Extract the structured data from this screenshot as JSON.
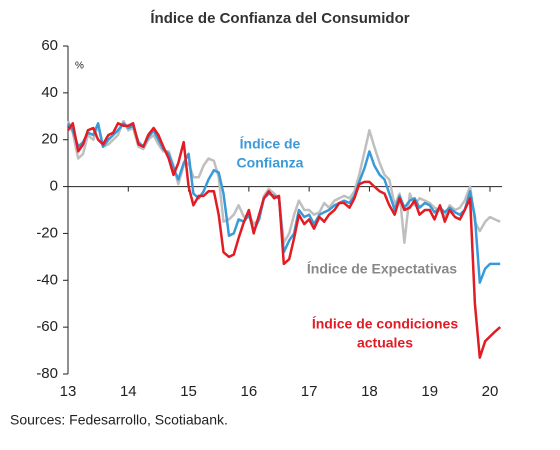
{
  "chart_data": {
    "type": "line",
    "title": "Índice de Confianza del Consumidor",
    "y_label": "%",
    "source": "Sources: Fedesarrollo, Scotiabank.",
    "xlim": [
      13,
      20.2
    ],
    "xticks": [
      13,
      14,
      15,
      16,
      17,
      18,
      19,
      20
    ],
    "ylim": [
      -80,
      60
    ],
    "yticks": [
      -80,
      -60,
      -40,
      -20,
      0,
      20,
      40,
      60
    ],
    "x": [
      13,
      13.08,
      13.17,
      13.25,
      13.33,
      13.42,
      13.5,
      13.58,
      13.67,
      13.75,
      13.83,
      13.92,
      14,
      14.08,
      14.17,
      14.25,
      14.33,
      14.42,
      14.5,
      14.58,
      14.67,
      14.75,
      14.83,
      14.92,
      15,
      15.08,
      15.17,
      15.25,
      15.33,
      15.42,
      15.5,
      15.58,
      15.67,
      15.75,
      15.83,
      15.92,
      16,
      16.08,
      16.17,
      16.25,
      16.33,
      16.42,
      16.5,
      16.58,
      16.67,
      16.75,
      16.83,
      16.92,
      17,
      17.08,
      17.17,
      17.25,
      17.33,
      17.42,
      17.5,
      17.58,
      17.67,
      17.75,
      17.83,
      17.92,
      18,
      18.08,
      18.17,
      18.25,
      18.33,
      18.42,
      18.5,
      18.58,
      18.67,
      18.75,
      18.83,
      18.92,
      19,
      19.08,
      19.17,
      19.25,
      19.33,
      19.42,
      19.5,
      19.58,
      19.67,
      19.75,
      19.83,
      19.92,
      20,
      20.08,
      20.17
    ],
    "series": [
      {
        "name": [
          "Índice de Expectativas"
        ],
        "color": "#bfbfbf",
        "values": [
          28,
          23,
          12,
          14,
          22,
          20,
          26,
          17,
          18,
          20,
          22,
          28,
          24,
          25,
          17,
          16,
          20,
          22,
          18,
          15,
          15,
          9,
          1,
          9,
          10,
          4,
          4,
          9,
          12,
          11,
          4,
          -15,
          -14,
          -12,
          -8,
          -13,
          -12,
          -16,
          -14,
          -4,
          -1,
          -3,
          -5,
          -24,
          -20,
          -12,
          -6,
          -10,
          -10,
          -12,
          -11,
          -7,
          -9,
          -6,
          -5,
          -4,
          -5,
          -2,
          5,
          15,
          24,
          17,
          10,
          5,
          3,
          -8,
          -3,
          -24,
          -3,
          -8,
          -5,
          -6,
          -7,
          -9,
          -10,
          -13,
          -8,
          -10,
          -9,
          -6,
          0,
          -15,
          -19,
          -15,
          -13,
          -14,
          -15
        ]
      },
      {
        "name": [
          "Índice de",
          "Confianza"
        ],
        "color": "#3a9ad9",
        "values": [
          27,
          24,
          17,
          19,
          23,
          22,
          27,
          17,
          20,
          22,
          24,
          27,
          25,
          26,
          19,
          17,
          21,
          24,
          20,
          16,
          14,
          8,
          3,
          10,
          14,
          -3,
          -5,
          -2,
          3,
          7,
          6,
          -3,
          -21,
          -20,
          -14,
          -15,
          -12,
          -19,
          -14,
          -5,
          -3,
          -4,
          -5,
          -28,
          -23,
          -20,
          -10,
          -13,
          -12,
          -16,
          -12,
          -11,
          -10,
          -8,
          -7,
          -6,
          -7,
          -4,
          2,
          8,
          15,
          9,
          5,
          3,
          -3,
          -10,
          -4,
          -9,
          -6,
          -5,
          -9,
          -7,
          -8,
          -11,
          -9,
          -11,
          -9,
          -11,
          -12,
          -10,
          -2,
          -13,
          -41,
          -35,
          -33,
          -33,
          -33
        ]
      },
      {
        "name": [
          "Índice de condiciones",
          "actuales"
        ],
        "color": "#e31b23",
        "values": [
          24,
          27,
          15,
          18,
          24,
          25,
          20,
          18,
          22,
          23,
          27,
          26,
          26,
          27,
          18,
          17,
          22,
          25,
          22,
          17,
          12,
          5,
          10,
          19,
          0,
          -8,
          -4,
          -4,
          -2,
          -2,
          -12,
          -28,
          -30,
          -29,
          -22,
          -15,
          -10,
          -20,
          -12,
          -5,
          -2,
          -5,
          -4,
          -33,
          -31,
          -22,
          -12,
          -16,
          -14,
          -18,
          -13,
          -15,
          -12,
          -10,
          -7,
          -7,
          -9,
          -5,
          1,
          2,
          2,
          0,
          -2,
          -3,
          -8,
          -12,
          -5,
          -10,
          -9,
          -6,
          -12,
          -10,
          -10,
          -14,
          -8,
          -15,
          -10,
          -13,
          -14,
          -10,
          -5,
          -50,
          -73,
          -66,
          -64,
          -62,
          -60
        ]
      }
    ]
  }
}
